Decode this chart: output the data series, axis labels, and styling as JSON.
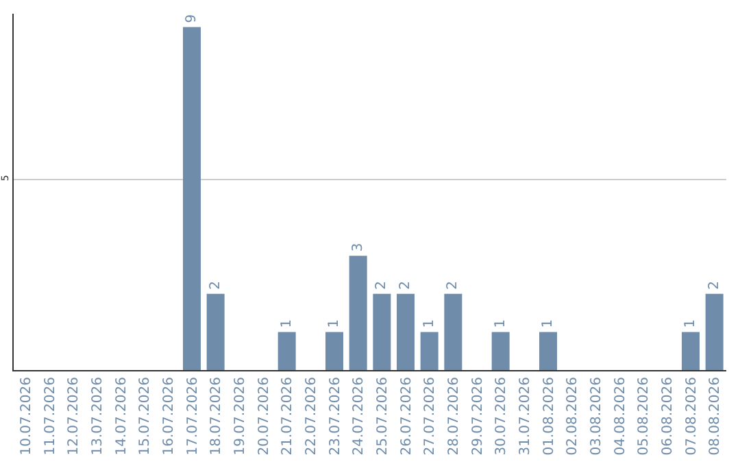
{
  "chart_data": {
    "type": "bar",
    "categories": [
      "10.07.2026",
      "11.07.2026",
      "12.07.2026",
      "13.07.2026",
      "14.07.2026",
      "15.07.2026",
      "16.07.2026",
      "17.07.2026",
      "18.07.2026",
      "19.07.2026",
      "20.07.2026",
      "21.07.2026",
      "22.07.2026",
      "23.07.2026",
      "24.07.2026",
      "25.07.2026",
      "26.07.2026",
      "27.07.2026",
      "28.07.2026",
      "29.07.2026",
      "30.07.2026",
      "31.07.2026",
      "01.08.2026",
      "02.08.2026",
      "03.08.2026",
      "04.08.2026",
      "05.08.2026",
      "06.08.2026",
      "07.08.2026",
      "08.08.2026"
    ],
    "values": [
      null,
      null,
      null,
      null,
      null,
      null,
      null,
      9,
      2,
      null,
      null,
      1,
      null,
      1,
      3,
      2,
      2,
      1,
      2,
      null,
      1,
      null,
      1,
      null,
      null,
      null,
      null,
      null,
      1,
      2
    ],
    "color": "#6f8cab",
    "ylim": [
      0,
      9.35
    ],
    "yticks": [
      5
    ],
    "grid": "y",
    "data_labels": true
  }
}
